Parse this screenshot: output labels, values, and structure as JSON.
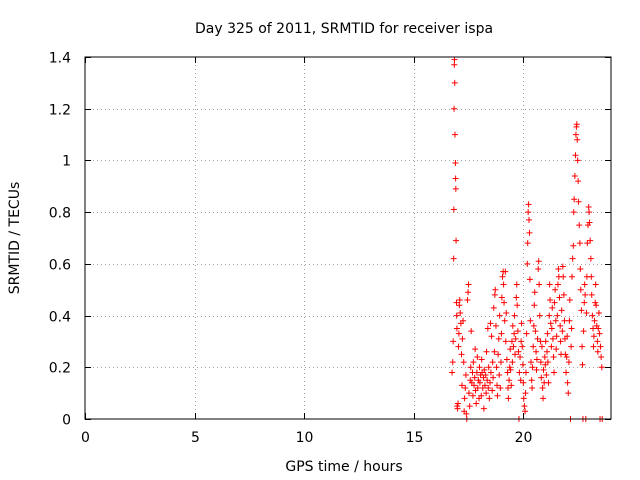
{
  "chart_data": {
    "type": "scatter",
    "title": "Day 325 of 2011, SRMTID for receiver ispa",
    "xlabel": "GPS time / hours",
    "ylabel": "SRMTID / TECUs",
    "xlim": [
      0,
      24
    ],
    "ylim": [
      0,
      1.4
    ],
    "xticks": [
      0,
      5,
      10,
      15,
      20
    ],
    "xtick_labels": [
      "0",
      "5",
      "10",
      "15",
      "20"
    ],
    "yticks": [
      0,
      0.2,
      0.4,
      0.6,
      0.8,
      1.0,
      1.2,
      1.4
    ],
    "ytick_labels": [
      "0",
      "0.2",
      "0.4",
      "0.6",
      "0.8",
      "1",
      "1.2",
      "1.4"
    ],
    "grid": true,
    "marker": "+",
    "color": "#ff0000",
    "series": [
      {
        "name": "SRMTID",
        "points": [
          [
            16.75,
            0.18
          ],
          [
            16.78,
            0.22
          ],
          [
            16.8,
            0.3
          ],
          [
            16.82,
            0.62
          ],
          [
            16.83,
            0.81
          ],
          [
            16.84,
            1.2
          ],
          [
            16.85,
            1.37
          ],
          [
            16.86,
            1.39
          ],
          [
            16.87,
            1.3
          ],
          [
            16.88,
            1.1
          ],
          [
            16.9,
            0.99
          ],
          [
            16.91,
            0.93
          ],
          [
            16.92,
            0.89
          ],
          [
            16.93,
            0.69
          ],
          [
            16.95,
            0.45
          ],
          [
            16.96,
            0.4
          ],
          [
            16.97,
            0.35
          ],
          [
            16.98,
            0.05
          ],
          [
            17.0,
            0.04
          ],
          [
            17.02,
            0.06
          ],
          [
            17.04,
            0.28
          ],
          [
            17.06,
            0.33
          ],
          [
            17.08,
            0.44
          ],
          [
            17.1,
            0.46
          ],
          [
            17.12,
            0.41
          ],
          [
            17.15,
            0.37
          ],
          [
            17.18,
            0.25
          ],
          [
            17.2,
            0.13
          ],
          [
            17.22,
            0.31
          ],
          [
            17.25,
            0.38
          ],
          [
            17.28,
            0.22
          ],
          [
            17.3,
            0.03
          ],
          [
            17.32,
            0.08
          ],
          [
            17.35,
            0.12
          ],
          [
            17.38,
            0.17
          ],
          [
            17.4,
            0.02
          ],
          [
            17.42,
            0.0
          ],
          [
            17.45,
            0.46
          ],
          [
            17.48,
            0.49
          ],
          [
            17.5,
            0.52
          ],
          [
            17.52,
            0.1
          ],
          [
            17.55,
            0.05
          ],
          [
            17.58,
            0.15
          ],
          [
            17.6,
            0.2
          ],
          [
            17.62,
            0.34
          ],
          [
            17.65,
            0.14
          ],
          [
            17.68,
            0.18
          ],
          [
            17.7,
            0.09
          ],
          [
            17.72,
            0.22
          ],
          [
            17.75,
            0.13
          ],
          [
            17.78,
            0.16
          ],
          [
            17.8,
            0.27
          ],
          [
            17.82,
            0.11
          ],
          [
            17.85,
            0.06
          ],
          [
            17.88,
            0.18
          ],
          [
            17.9,
            0.24
          ],
          [
            17.92,
            0.12
          ],
          [
            17.95,
            0.15
          ],
          [
            17.98,
            0.08
          ],
          [
            18.0,
            0.2
          ],
          [
            18.02,
            0.14
          ],
          [
            18.05,
            0.17
          ],
          [
            18.08,
            0.09
          ],
          [
            18.1,
            0.23
          ],
          [
            18.12,
            0.18
          ],
          [
            18.15,
            0.12
          ],
          [
            18.18,
            0.16
          ],
          [
            18.2,
            0.04
          ],
          [
            18.22,
            0.19
          ],
          [
            18.25,
            0.13
          ],
          [
            18.28,
            0.17
          ],
          [
            18.3,
            0.1
          ],
          [
            18.32,
            0.26
          ],
          [
            18.35,
            0.15
          ],
          [
            18.38,
            0.35
          ],
          [
            18.4,
            0.12
          ],
          [
            18.42,
            0.2
          ],
          [
            18.45,
            0.08
          ],
          [
            18.48,
            0.14
          ],
          [
            18.5,
            0.37
          ],
          [
            18.52,
            0.18
          ],
          [
            18.55,
            0.32
          ],
          [
            18.58,
            0.11
          ],
          [
            18.6,
            0.22
          ],
          [
            18.62,
            0.16
          ],
          [
            18.65,
            0.43
          ],
          [
            18.68,
            0.26
          ],
          [
            18.7,
            0.48
          ],
          [
            18.72,
            0.5
          ],
          [
            18.75,
            0.36
          ],
          [
            18.78,
            0.2
          ],
          [
            18.8,
            0.13
          ],
          [
            18.82,
            0.09
          ],
          [
            18.85,
            0.25
          ],
          [
            18.88,
            0.31
          ],
          [
            18.9,
            0.17
          ],
          [
            18.92,
            0.4
          ],
          [
            18.95,
            0.12
          ],
          [
            18.98,
            0.22
          ],
          [
            19.0,
            0.33
          ],
          [
            19.02,
            0.47
          ],
          [
            19.05,
            0.55
          ],
          [
            19.08,
            0.57
          ],
          [
            19.1,
            0.52
          ],
          [
            19.12,
            0.45
          ],
          [
            19.15,
            0.38
          ],
          [
            19.18,
            0.57
          ],
          [
            19.2,
            0.3
          ],
          [
            19.22,
            0.41
          ],
          [
            19.25,
            0.23
          ],
          [
            19.28,
            0.18
          ],
          [
            19.3,
            0.12
          ],
          [
            19.32,
            0.08
          ],
          [
            19.35,
            0.15
          ],
          [
            19.38,
            0.2
          ],
          [
            19.4,
            0.27
          ],
          [
            19.42,
            0.19
          ],
          [
            19.45,
            0.13
          ],
          [
            19.48,
            0.3
          ],
          [
            19.5,
            0.22
          ],
          [
            19.52,
            0.36
          ],
          [
            19.55,
            0.28
          ],
          [
            19.58,
            0.33
          ],
          [
            19.6,
            0.4
          ],
          [
            19.62,
            0.25
          ],
          [
            19.65,
            0.31
          ],
          [
            19.68,
            0.47
          ],
          [
            19.7,
            0.52
          ],
          [
            19.72,
            0.44
          ],
          [
            19.75,
            0.34
          ],
          [
            19.78,
            0.26
          ],
          [
            19.8,
            0.0
          ],
          [
            19.82,
            0.18
          ],
          [
            19.85,
            0.24
          ],
          [
            19.88,
            0.15
          ],
          [
            19.9,
            0.3
          ],
          [
            19.92,
            0.37
          ],
          [
            19.95,
            0.28
          ],
          [
            19.98,
            0.21
          ],
          [
            20.0,
            0.14
          ],
          [
            20.02,
            0.08
          ],
          [
            20.05,
            0.05
          ],
          [
            20.08,
            0.03
          ],
          [
            20.1,
            0.1
          ],
          [
            20.12,
            0.18
          ],
          [
            20.15,
            0.33
          ],
          [
            20.18,
            0.6
          ],
          [
            20.2,
            0.68
          ],
          [
            20.22,
            0.8
          ],
          [
            20.24,
            0.83
          ],
          [
            20.26,
            0.77
          ],
          [
            20.28,
            0.72
          ],
          [
            20.3,
            0.54
          ],
          [
            20.32,
            0.38
          ],
          [
            20.35,
            0.22
          ],
          [
            20.38,
            0.15
          ],
          [
            20.4,
            0.12
          ],
          [
            20.42,
            0.2
          ],
          [
            20.45,
            0.28
          ],
          [
            20.48,
            0.36
          ],
          [
            20.5,
            0.44
          ],
          [
            20.52,
            0.49
          ],
          [
            20.55,
            0.34
          ],
          [
            20.58,
            0.26
          ],
          [
            20.6,
            0.19
          ],
          [
            20.62,
            0.23
          ],
          [
            20.65,
            0.31
          ],
          [
            20.68,
            0.58
          ],
          [
            20.7,
            0.61
          ],
          [
            20.72,
            0.52
          ],
          [
            20.75,
            0.4
          ],
          [
            20.78,
            0.3
          ],
          [
            20.8,
            0.22
          ],
          [
            20.82,
            0.16
          ],
          [
            20.85,
            0.28
          ],
          [
            20.88,
            0.12
          ],
          [
            20.9,
            0.08
          ],
          [
            20.92,
            0.19
          ],
          [
            20.95,
            0.14
          ],
          [
            20.98,
            0.24
          ],
          [
            21.0,
            0.21
          ],
          [
            21.02,
            0.3
          ],
          [
            21.05,
            0.17
          ],
          [
            21.08,
            0.26
          ],
          [
            21.1,
            0.33
          ],
          [
            21.12,
            0.22
          ],
          [
            21.15,
            0.14
          ],
          [
            21.18,
            0.4
          ],
          [
            21.2,
            0.52
          ],
          [
            21.22,
            0.46
          ],
          [
            21.25,
            0.37
          ],
          [
            21.28,
            0.28
          ],
          [
            21.3,
            0.35
          ],
          [
            21.32,
            0.43
          ],
          [
            21.35,
            0.31
          ],
          [
            21.38,
            0.24
          ],
          [
            21.4,
            0.18
          ],
          [
            21.42,
            0.45
          ],
          [
            21.45,
            0.5
          ],
          [
            21.48,
            0.38
          ],
          [
            21.5,
            0.27
          ],
          [
            21.52,
            0.32
          ],
          [
            21.55,
            0.4
          ],
          [
            21.58,
            0.52
          ],
          [
            21.6,
            0.58
          ],
          [
            21.62,
            0.55
          ],
          [
            21.65,
            0.47
          ],
          [
            21.68,
            0.36
          ],
          [
            21.7,
            0.3
          ],
          [
            21.72,
            0.25
          ],
          [
            21.75,
            0.42
          ],
          [
            21.78,
            0.34
          ],
          [
            21.8,
            0.59
          ],
          [
            21.82,
            0.55
          ],
          [
            21.85,
            0.48
          ],
          [
            21.88,
            0.38
          ],
          [
            21.9,
            0.31
          ],
          [
            21.92,
            0.25
          ],
          [
            21.95,
            0.18
          ],
          [
            21.98,
            0.24
          ],
          [
            22.0,
            0.32
          ],
          [
            22.02,
            0.14
          ],
          [
            22.05,
            0.1
          ],
          [
            22.08,
            0.22
          ],
          [
            22.1,
            0.38
          ],
          [
            22.12,
            0.46
          ],
          [
            22.15,
            0.0
          ],
          [
            22.18,
            0.28
          ],
          [
            22.2,
            0.35
          ],
          [
            22.22,
            0.55
          ],
          [
            22.25,
            0.62
          ],
          [
            22.28,
            0.67
          ],
          [
            22.3,
            0.8
          ],
          [
            22.32,
            0.85
          ],
          [
            22.35,
            0.94
          ],
          [
            22.38,
            1.02
          ],
          [
            22.4,
            1.1
          ],
          [
            22.42,
            1.13
          ],
          [
            22.44,
            1.14
          ],
          [
            22.46,
            1.08
          ],
          [
            22.48,
            1.0
          ],
          [
            22.5,
            0.92
          ],
          [
            22.52,
            0.84
          ],
          [
            22.55,
            0.75
          ],
          [
            22.58,
            0.68
          ],
          [
            22.6,
            0.58
          ],
          [
            22.62,
            0.5
          ],
          [
            22.65,
            0.42
          ],
          [
            22.68,
            0.28
          ],
          [
            22.7,
            0.21
          ],
          [
            22.72,
            0.0
          ],
          [
            22.75,
            0.34
          ],
          [
            22.78,
            0.45
          ],
          [
            22.8,
            0.52
          ],
          [
            22.82,
            0.48
          ],
          [
            22.85,
            0.0
          ],
          [
            22.88,
            0.41
          ],
          [
            22.9,
            0.55
          ],
          [
            22.92,
            0.68
          ],
          [
            22.95,
            0.75
          ],
          [
            22.98,
            0.82
          ],
          [
            23.0,
            0.8
          ],
          [
            23.02,
            0.76
          ],
          [
            23.05,
            0.69
          ],
          [
            23.08,
            0.62
          ],
          [
            23.1,
            0.55
          ],
          [
            23.12,
            0.48
          ],
          [
            23.15,
            0.4
          ],
          [
            23.18,
            0.35
          ],
          [
            23.2,
            0.28
          ],
          [
            23.22,
            0.32
          ],
          [
            23.25,
            0.38
          ],
          [
            23.28,
            0.45
          ],
          [
            23.3,
            0.52
          ],
          [
            23.32,
            0.44
          ],
          [
            23.35,
            0.36
          ],
          [
            23.38,
            0.3
          ],
          [
            23.4,
            0.26
          ],
          [
            23.42,
            0.35
          ],
          [
            23.45,
            0.41
          ],
          [
            23.48,
            0.33
          ],
          [
            23.5,
            0.0
          ],
          [
            23.52,
            0.28
          ],
          [
            23.55,
            0.24
          ],
          [
            23.58,
            0.2
          ],
          [
            23.6,
            0.0
          ]
        ]
      }
    ]
  }
}
